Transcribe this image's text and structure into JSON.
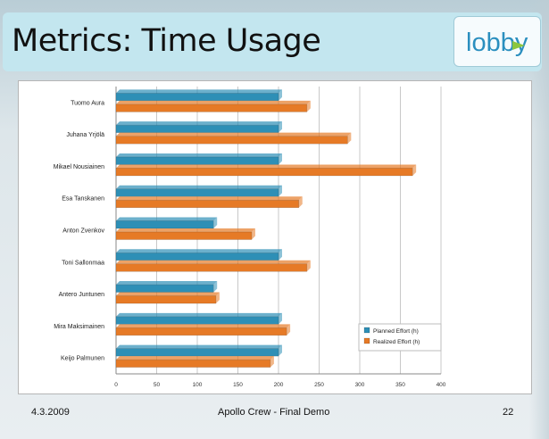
{
  "slide": {
    "title": "Metrics: Time Usage",
    "logo_text": "lobby",
    "footer_date": "4.3.2009",
    "footer_center": "Apollo Crew - Final Demo",
    "page_number": "22"
  },
  "colors": {
    "planned": "#2e8fb6",
    "realized": "#e67a26",
    "title_bar": "#c3e6ef",
    "logo_blue": "#2b8fbf",
    "logo_green": "#8cc63e"
  },
  "chart_data": {
    "type": "bar",
    "orientation": "horizontal",
    "categories": [
      "Tuomo Aura",
      "Juhana Yrjölä",
      "Mikael Nousiainen",
      "Esa Tanskanen",
      "Anton Zvenkov",
      "Toni Sallonmaa",
      "Antero Juntunen",
      "Mira Maksimainen",
      "Keijo Palmunen"
    ],
    "series": [
      {
        "name": "Planned Effort (h)",
        "values": [
          200,
          200,
          200,
          200,
          120,
          200,
          120,
          200,
          200
        ]
      },
      {
        "name": "Realized Effort (h)",
        "values": [
          235,
          285,
          365,
          225,
          167,
          235,
          123,
          210,
          190
        ]
      }
    ],
    "x_ticks": [
      "0",
      "50",
      "100",
      "150",
      "200",
      "250",
      "300",
      "350",
      "400"
    ],
    "xlim": [
      0,
      400
    ],
    "grid": true,
    "legend_position": "right"
  }
}
